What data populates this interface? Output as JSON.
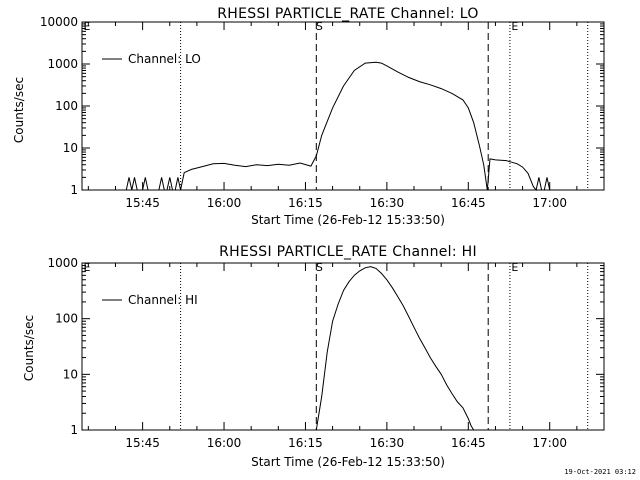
{
  "timestamp": "19-Oct-2021 03:12",
  "chart_data": [
    {
      "type": "line",
      "title": "RHESSI PARTICLE_RATE Channel: LO",
      "xlabel": "Start Time (26-Feb-12 15:33:50)",
      "ylabel": "Counts/sec",
      "yscale": "log",
      "ylim": [
        1,
        10000
      ],
      "xlim": [
        "15:33:50",
        "17:10:00"
      ],
      "xticks": [
        "15:45",
        "16:00",
        "16:15",
        "16:30",
        "16:45",
        "17:00"
      ],
      "yticks": [
        "1",
        "10",
        "100",
        "1000",
        "10000"
      ],
      "legend": {
        "label": "Channel: LO",
        "position": "top-left"
      },
      "markers": {
        "start": "S",
        "end": "E",
        "e_label": "E"
      },
      "vlines": {
        "dotted": [
          "15:52:00",
          "16:52:40",
          "17:07:00"
        ],
        "dashed": [
          "16:17:00",
          "16:48:40"
        ]
      },
      "series": [
        {
          "name": "Channel: LO",
          "x": [
            "15:42:00",
            "15:42:30",
            "15:43:00",
            "15:43:30",
            "15:44:00",
            "15:44:30",
            "15:45:00",
            "15:45:30",
            "15:46:00",
            "15:46:30",
            "15:47:00",
            "15:47:30",
            "15:48:00",
            "15:48:30",
            "15:49:00",
            "15:49:30",
            "15:50:00",
            "15:50:30",
            "15:51:00",
            "15:51:30",
            "15:52:00",
            "15:52:40",
            "15:54:00",
            "15:56:00",
            "15:58:00",
            "16:00:00",
            "16:02:00",
            "16:04:00",
            "16:06:00",
            "16:08:00",
            "16:10:00",
            "16:12:00",
            "16:14:00",
            "16:16:00",
            "16:17:00",
            "16:18:00",
            "16:20:00",
            "16:22:00",
            "16:24:00",
            "16:26:00",
            "16:28:00",
            "16:29:00",
            "16:30:00",
            "16:32:00",
            "16:34:00",
            "16:36:00",
            "16:38:00",
            "16:40:00",
            "16:42:00",
            "16:44:00",
            "16:45:00",
            "16:46:00",
            "16:47:00",
            "16:47:50",
            "16:48:30",
            "16:49:00",
            "16:50:00",
            "16:52:00",
            "16:54:00",
            "16:55:00",
            "16:56:00",
            "16:57:00",
            "16:57:30",
            "16:58:00",
            "16:58:30",
            "16:59:00",
            "16:59:30",
            "17:00:00",
            "17:01:00"
          ],
          "values": [
            1,
            2,
            1,
            2,
            1,
            1,
            1,
            2,
            1,
            1,
            1,
            1,
            1,
            2,
            1,
            1,
            2,
            1,
            1,
            2,
            1,
            2.6,
            3.1,
            3.6,
            4.2,
            4.3,
            3.9,
            3.6,
            4.0,
            3.8,
            4.1,
            3.9,
            4.4,
            3.7,
            6.5,
            20,
            90,
            300,
            700,
            1050,
            1100,
            1050,
            900,
            650,
            480,
            380,
            320,
            260,
            200,
            140,
            90,
            40,
            12,
            4,
            1,
            5.5,
            5.2,
            5,
            4.2,
            3.5,
            2.5,
            1.2,
            1,
            2,
            1,
            1,
            2,
            1,
            1
          ]
        }
      ]
    },
    {
      "type": "line",
      "title": "RHESSI PARTICLE_RATE Channel: HI",
      "xlabel": "Start Time (26-Feb-12 15:33:50)",
      "ylabel": "Counts/sec",
      "yscale": "log",
      "ylim": [
        1,
        1000
      ],
      "xlim": [
        "15:33:50",
        "17:10:00"
      ],
      "xticks": [
        "15:45",
        "16:00",
        "16:15",
        "16:30",
        "16:45",
        "17:00"
      ],
      "yticks": [
        "1",
        "10",
        "100",
        "1000"
      ],
      "legend": {
        "label": "Channel: HI",
        "position": "top-left"
      },
      "markers": {
        "start": "S",
        "end": "E",
        "e_label": "E"
      },
      "vlines": {
        "dotted": [
          "15:52:00",
          "16:52:40",
          "17:07:00"
        ],
        "dashed": [
          "16:17:00",
          "16:48:40"
        ]
      },
      "series": [
        {
          "name": "Channel: HI",
          "x": [
            "16:17:00",
            "16:18:00",
            "16:19:00",
            "16:20:00",
            "16:21:00",
            "16:22:00",
            "16:23:00",
            "16:24:00",
            "16:25:00",
            "16:26:00",
            "16:27:00",
            "16:28:00",
            "16:29:00",
            "16:30:00",
            "16:31:00",
            "16:32:00",
            "16:33:00",
            "16:34:00",
            "16:35:00",
            "16:36:00",
            "16:37:00",
            "16:38:00",
            "16:39:00",
            "16:40:00",
            "16:41:00",
            "16:42:00",
            "16:43:00",
            "16:44:00",
            "16:45:00",
            "16:45:30",
            "16:46:00"
          ],
          "values": [
            1,
            4,
            25,
            90,
            180,
            320,
            460,
            600,
            720,
            820,
            860,
            800,
            650,
            500,
            360,
            250,
            170,
            110,
            70,
            45,
            30,
            20,
            14,
            10,
            6.5,
            4.5,
            3.2,
            2.5,
            1.6,
            1.2,
            1
          ]
        }
      ]
    }
  ]
}
